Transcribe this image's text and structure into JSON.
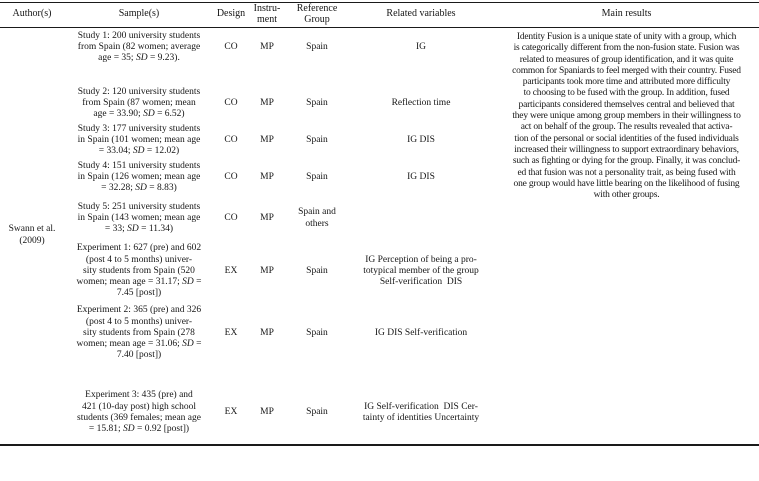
{
  "table": {
    "headers": {
      "author": "Author(s)",
      "sample": "Sample(s)",
      "design": "Design",
      "instrument": "Instru-\nment",
      "reference": "Reference\nGroup",
      "related": "Related variables",
      "main": "Main results"
    },
    "author": "Swann et al.\n(2009)",
    "rows": [
      {
        "sample": "Study 1: 200 university students\nfrom Spain (82 women; average\nage = 35; SD = 9.23).",
        "design": "CO",
        "instrument": "MP",
        "reference": "Spain",
        "related": "IG"
      },
      {
        "sample": "Study 2: 120 university students\nfrom Spain (87 women; mean\nage = 33.90; SD = 6.52)",
        "design": "CO",
        "instrument": "MP",
        "reference": "Spain",
        "related": "Reflection time"
      },
      {
        "sample": "Study 3: 177 university students\nin Spain (101 women; mean age\n= 33.04; SD = 12.02)",
        "design": "CO",
        "instrument": "MP",
        "reference": "Spain",
        "related": "IG DIS"
      },
      {
        "sample": "Study 4: 151 university students\nin Spain (126 women; mean age\n= 32.28; SD = 8.83)",
        "design": "CO",
        "instrument": "MP",
        "reference": "Spain",
        "related": "IG DIS"
      },
      {
        "sample": "Study 5: 251 university students\nin Spain (143 women; mean age\n= 33; SD = 11.34)",
        "design": "CO",
        "instrument": "MP",
        "reference": "Spain and\nothers",
        "related": ""
      },
      {
        "sample": "Experiment 1: 627 (pre) and 602\n(post 4 to 5 months) univer-\nsity students from Spain (520\nwomen; mean age = 31.17; SD =\n7.45 [post])",
        "design": "EX",
        "instrument": "MP",
        "reference": "Spain",
        "related": "IG Perception of being a pro-\ntotypical member of the group\nSelf-verification  DIS"
      },
      {
        "sample": "Experiment 2: 365 (pre) and 326\n(post 4 to 5 months) univer-\nsity students from Spain (278\nwomen; mean age = 31.06; SD =\n7.40 [post])",
        "design": "EX",
        "instrument": "MP",
        "reference": "Spain",
        "related": "IG DIS Self-verification"
      },
      {
        "sample": "Experiment 3: 435 (pre) and\n421 (10-day post) high school\nstudents (369 females; mean age\n= 15.81; SD = 0.92 [post])",
        "design": "EX",
        "instrument": "MP",
        "reference": "Spain",
        "related": "IG Self-verification  DIS Cer-\ntainty of identities Uncertainty"
      }
    ],
    "main_results": "Identity Fusion is a unique state of unity with a group, which\nis categorically different from the non-fusion state. Fusion was\nrelated to measures of group identification, and it was quite\ncommon for Spaniards to feel merged with their country. Fused\nparticipants took more time and attributed more difficulty\nto choosing to be fused with the group. In addition, fused\nparticipants considered themselves central and believed that\nthey were unique among group members in their willingness to\nact on behalf of the group. The results revealed that activa-\ntion of the personal or social identities of the fused individuals\nincreased their willingness to support extraordinary behaviors,\nsuch as fighting or dying for the group. Finally, it was conclud-\ned that fusion was not a personality trait, as being fused with\none group would have little bearing on the likelihood of fusing\nwith other groups."
  }
}
